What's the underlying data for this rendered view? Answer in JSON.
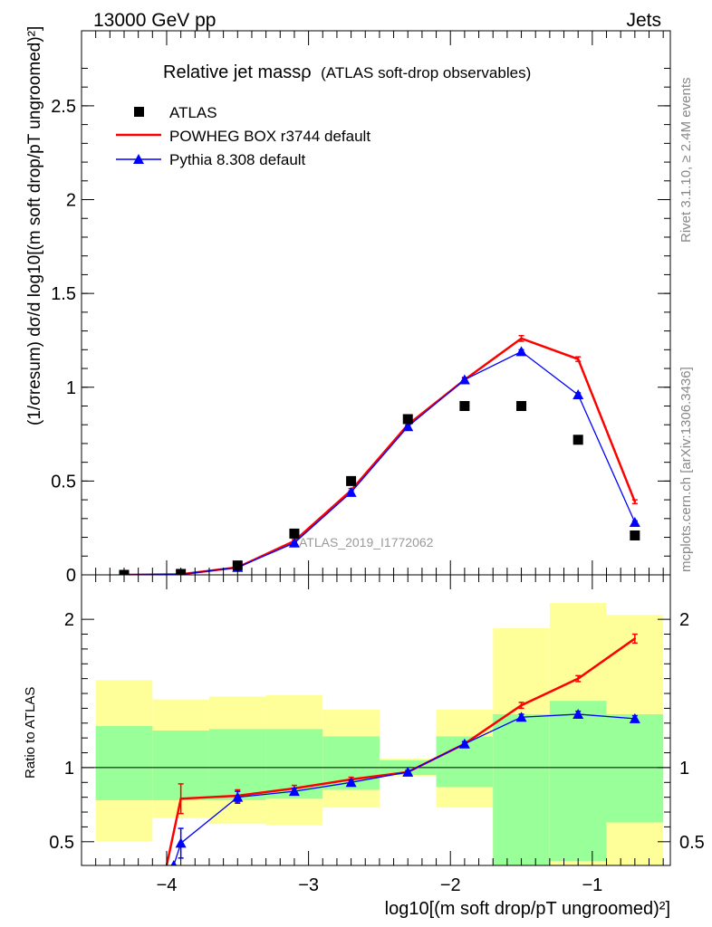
{
  "header": {
    "left": "13000 GeV pp",
    "right": "Jets"
  },
  "title": {
    "main": "Relative jet massρ",
    "sub": "(ATLAS soft-drop observables)"
  },
  "side_labels": {
    "rivet": "Rivet 3.1.10, ≥ 2.4M events",
    "mcplots": "mcplots.cern.ch [arXiv:1306.3436]"
  },
  "watermark": "ATLAS_2019_I1772062",
  "axes": {
    "ylabel_top": "(1/σresum) dσ/d log10[(m soft drop/pT ungroomed)²]",
    "ylabel_ratio": "Ratio to ATLAS",
    "xlabel": "log10[(m soft drop/pT ungroomed)²]"
  },
  "legend": [
    {
      "label": "ATLAS",
      "color": "#000000",
      "marker": "square"
    },
    {
      "label": "POWHEG BOX r3744 default",
      "color": "#ff0000",
      "marker": "line"
    },
    {
      "label": "Pythia 8.308 default",
      "color": "#0000ff",
      "marker": "triangle"
    }
  ],
  "colors": {
    "band_inner": "#99ff99",
    "band_outer": "#ffff99",
    "data": "#000000",
    "powheg": "#ff0000",
    "pythia": "#0000ff"
  },
  "chart_data": [
    {
      "type": "scatter",
      "panel": "main",
      "xlim": [
        -4.6,
        -0.45
      ],
      "ylim": [
        0,
        2.9
      ],
      "yticks": [
        0,
        0.5,
        1,
        1.5,
        2,
        2.5
      ],
      "ytick_labels": [
        "0",
        "0.5",
        "1",
        "1.5",
        "2",
        "2.5"
      ],
      "series": [
        {
          "name": "ATLAS",
          "x": [
            -4.3,
            -3.9,
            -3.5,
            -3.1,
            -2.7,
            -2.3,
            -1.9,
            -1.5,
            -1.1,
            -0.7
          ],
          "y": [
            0.0,
            0.005,
            0.05,
            0.22,
            0.5,
            0.83,
            0.9,
            0.9,
            0.72,
            0.21
          ]
        },
        {
          "name": "POWHEG BOX r3744 default",
          "x": [
            -4.3,
            -3.9,
            -3.5,
            -3.1,
            -2.7,
            -2.3,
            -1.9,
            -1.5,
            -1.1,
            -0.7
          ],
          "y": [
            0.0,
            0.003,
            0.04,
            0.18,
            0.45,
            0.8,
            1.04,
            1.26,
            1.15,
            0.39
          ],
          "yerr": [
            0,
            0.001,
            0.004,
            0.008,
            0.01,
            0.01,
            0.012,
            0.015,
            0.012,
            0.01
          ]
        },
        {
          "name": "Pythia 8.308 default",
          "x": [
            -4.3,
            -3.9,
            -3.5,
            -3.1,
            -2.7,
            -2.3,
            -1.9,
            -1.5,
            -1.1,
            -0.7
          ],
          "y": [
            0.0,
            0.002,
            0.04,
            0.17,
            0.44,
            0.79,
            1.04,
            1.19,
            0.96,
            0.28
          ],
          "yerr": [
            0,
            0.001,
            0.003,
            0.006,
            0.008,
            0.008,
            0.01,
            0.01,
            0.01,
            0.008
          ]
        }
      ]
    },
    {
      "type": "line",
      "panel": "ratio",
      "xlim": [
        -4.6,
        -0.45
      ],
      "ylim": [
        0.34,
        2.3
      ],
      "yticks": [
        0.5,
        1,
        2
      ],
      "ytick_labels": [
        "0.5",
        "1",
        "2"
      ],
      "xticks": [
        -4,
        -3,
        -2,
        -1
      ],
      "xtick_labels": [
        "−4",
        "−3",
        "−2",
        "−1"
      ],
      "reference_line": 1,
      "uncertainty_bands": {
        "edges": [
          -4.5,
          -4.1,
          -3.7,
          -3.3,
          -2.9,
          -2.5,
          -2.1,
          -1.7,
          -1.3,
          -0.9,
          -0.5
        ],
        "inner_lo": [
          0.78,
          0.78,
          0.78,
          0.79,
          0.85,
          0.95,
          0.87,
          0.34,
          0.37,
          0.63
        ],
        "inner_hi": [
          1.28,
          1.25,
          1.26,
          1.26,
          1.21,
          1.05,
          1.21,
          1.36,
          1.45,
          1.36
        ],
        "outer_lo": [
          0.5,
          0.66,
          0.62,
          0.61,
          0.73,
          0.94,
          0.73,
          0.34,
          0.34,
          0.34
        ],
        "outer_hi": [
          1.59,
          1.46,
          1.48,
          1.49,
          1.39,
          1.06,
          1.39,
          1.94,
          2.11,
          2.03
        ]
      },
      "series": [
        {
          "name": "POWHEG BOX r3744 default",
          "x": [
            -4.0,
            -3.9,
            -3.5,
            -3.1,
            -2.7,
            -2.3,
            -1.9,
            -1.5,
            -1.1,
            -0.7
          ],
          "y": [
            0.34,
            0.79,
            0.81,
            0.86,
            0.92,
            0.97,
            1.16,
            1.42,
            1.6,
            1.87
          ],
          "yerr": [
            0,
            0.1,
            0.04,
            0.02,
            0.015,
            0.01,
            0.015,
            0.02,
            0.02,
            0.03
          ]
        },
        {
          "name": "Pythia 8.308 default",
          "x": [
            -3.95,
            -3.9,
            -3.5,
            -3.1,
            -2.7,
            -2.3,
            -1.9,
            -1.5,
            -1.1,
            -0.7
          ],
          "y": [
            0.34,
            0.49,
            0.8,
            0.84,
            0.9,
            0.97,
            1.16,
            1.34,
            1.36,
            1.33
          ],
          "yerr": [
            0,
            0.1,
            0.04,
            0.02,
            0.015,
            0.01,
            0.015,
            0.02,
            0.02,
            0.02
          ]
        }
      ]
    }
  ]
}
